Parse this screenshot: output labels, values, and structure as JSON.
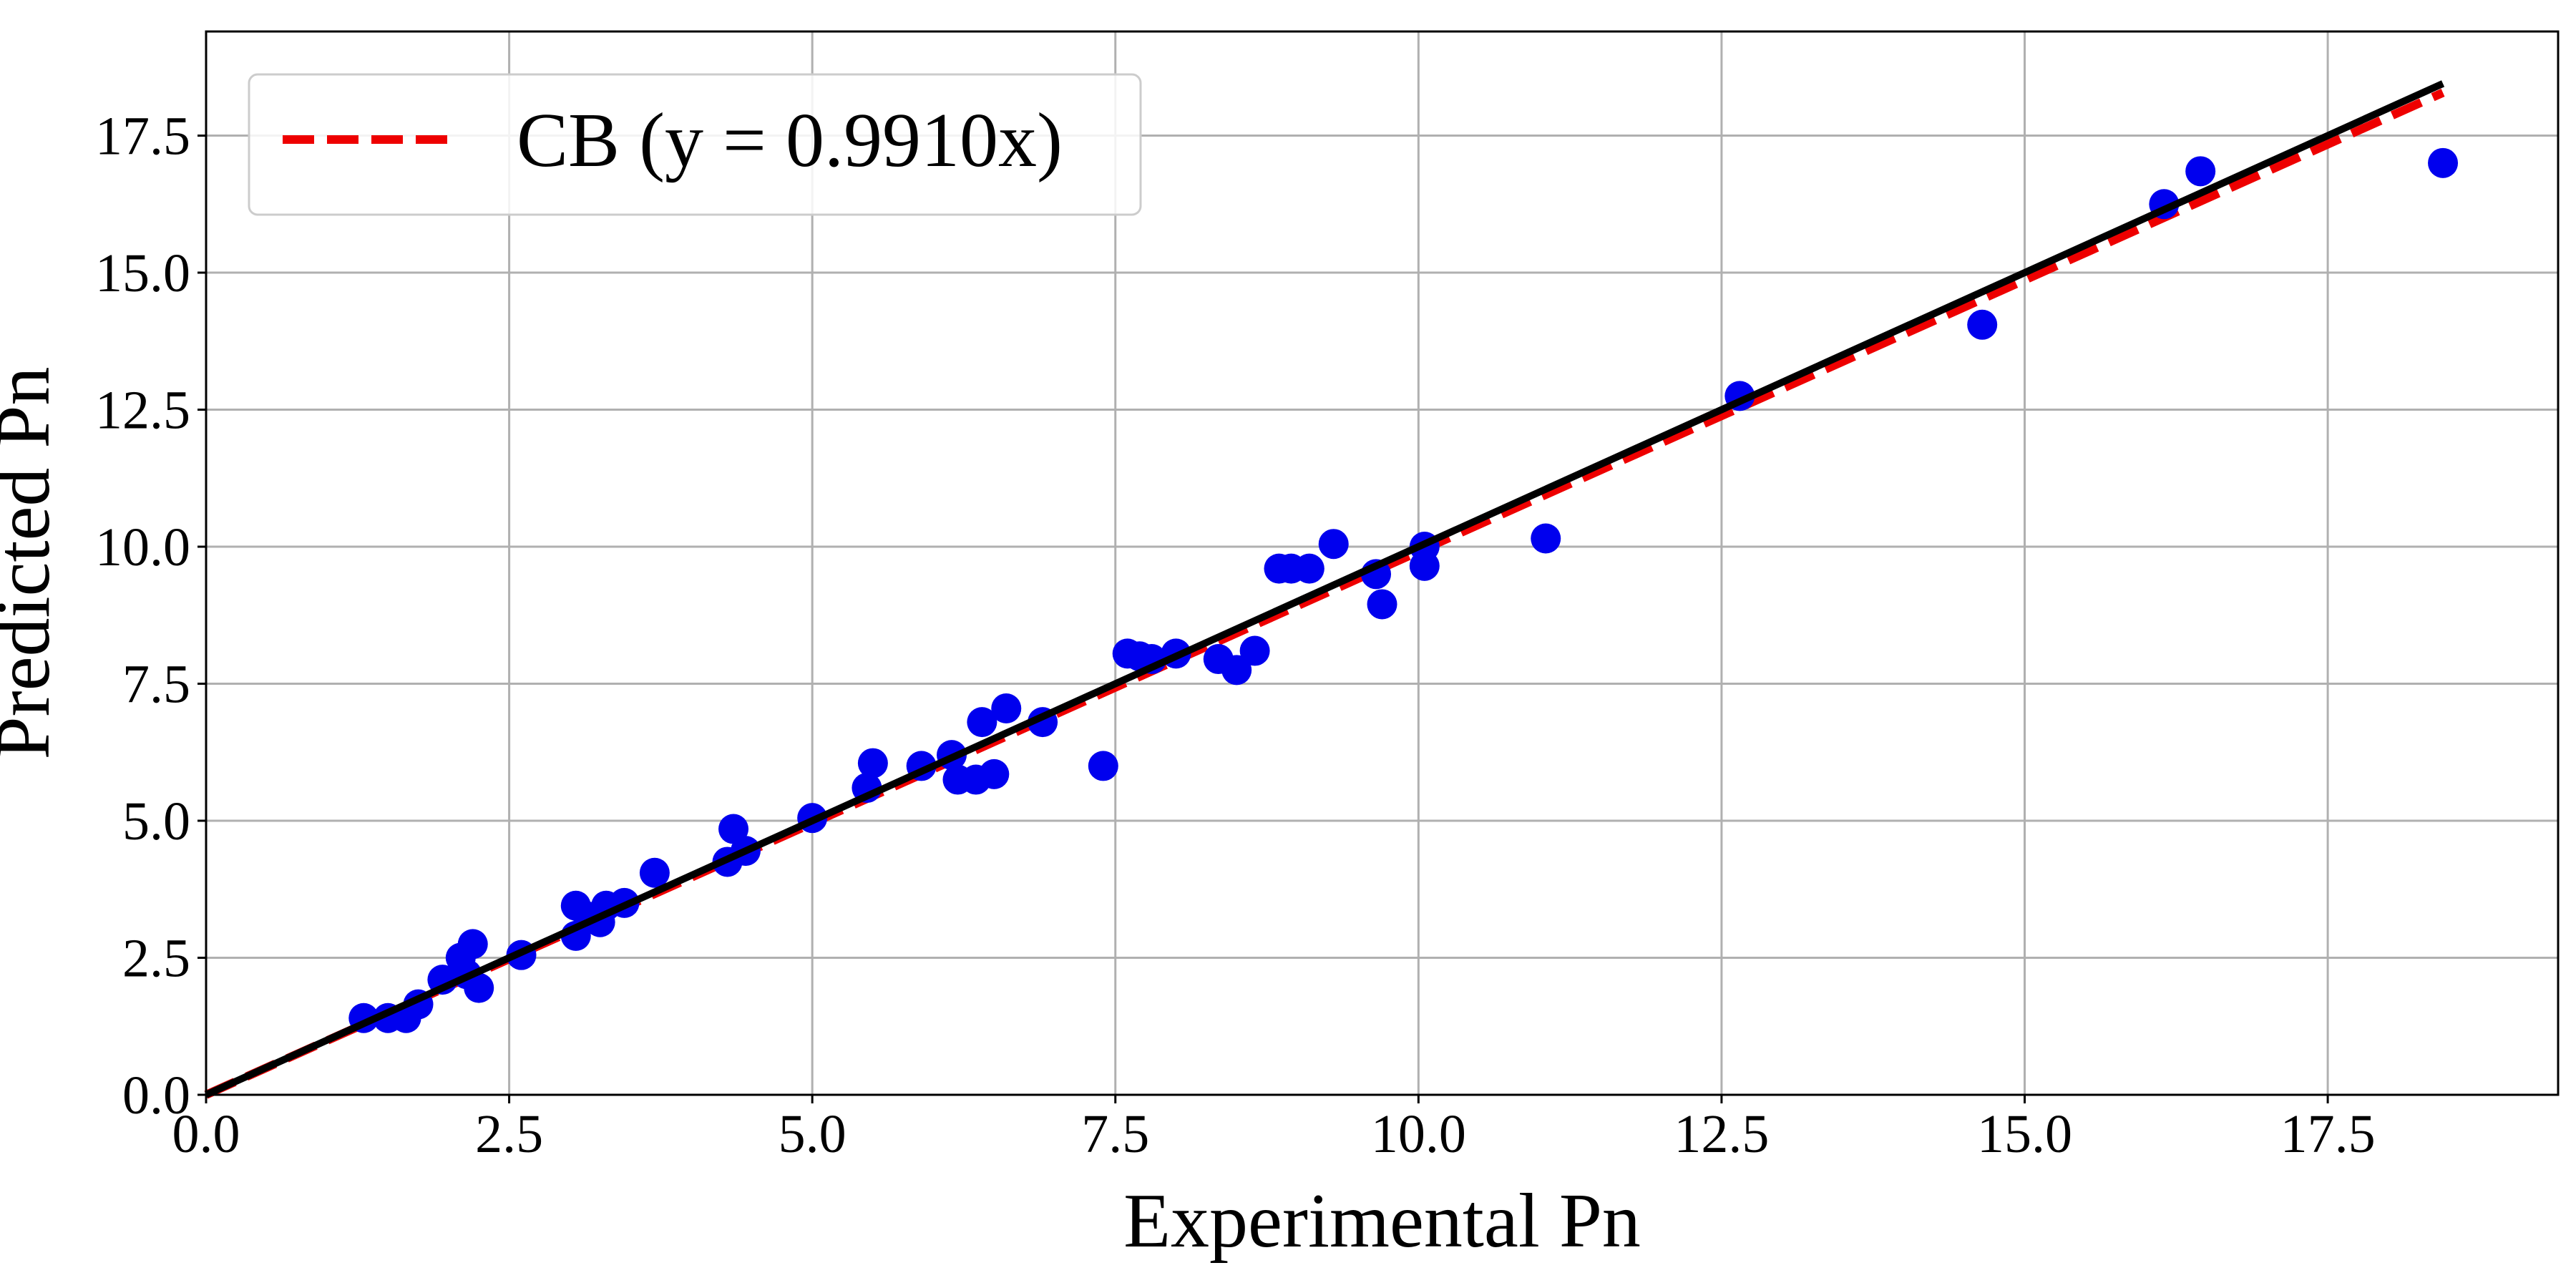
{
  "chart_data": {
    "type": "scatter",
    "xlabel": "Experimental Pn",
    "ylabel": "Predicted Pn",
    "xlim": [
      0,
      19.4
    ],
    "ylim": [
      0,
      19.4
    ],
    "x_ticks": [
      0.0,
      2.5,
      5.0,
      7.5,
      10.0,
      12.5,
      15.0,
      17.5
    ],
    "x_tick_labels": [
      "0.0",
      "2.5",
      "5.0",
      "7.5",
      "10.0",
      "12.5",
      "15.0",
      "17.5"
    ],
    "y_ticks": [
      0.0,
      2.5,
      5.0,
      7.5,
      10.0,
      12.5,
      15.0,
      17.5
    ],
    "y_tick_labels": [
      "0.0",
      "2.5",
      "5.0",
      "7.5",
      "10.0",
      "12.5",
      "15.0",
      "17.5"
    ],
    "grid": true,
    "legend": {
      "placement": "top-left",
      "entries": [
        "CB (y = 0.9910x)"
      ]
    },
    "colors": {
      "points": "#0000ee",
      "fit_line": "#ee0000",
      "identity_line": "#000000"
    },
    "fit_line": {
      "slope": 0.991,
      "x_range": [
        0,
        18.45
      ],
      "style": "dashed"
    },
    "identity_line": {
      "slope": 1.0,
      "x_range": [
        0,
        18.45
      ],
      "style": "solid"
    },
    "points": [
      {
        "x": 1.3,
        "y": 1.4
      },
      {
        "x": 1.5,
        "y": 1.4
      },
      {
        "x": 1.65,
        "y": 1.4
      },
      {
        "x": 1.75,
        "y": 1.65
      },
      {
        "x": 1.95,
        "y": 2.1
      },
      {
        "x": 2.1,
        "y": 2.5
      },
      {
        "x": 2.15,
        "y": 2.2
      },
      {
        "x": 2.2,
        "y": 2.75
      },
      {
        "x": 2.25,
        "y": 1.95
      },
      {
        "x": 2.6,
        "y": 2.55
      },
      {
        "x": 3.05,
        "y": 3.45
      },
      {
        "x": 3.05,
        "y": 2.9
      },
      {
        "x": 3.15,
        "y": 3.25
      },
      {
        "x": 3.25,
        "y": 3.15
      },
      {
        "x": 3.3,
        "y": 3.45
      },
      {
        "x": 3.45,
        "y": 3.5
      },
      {
        "x": 3.7,
        "y": 4.05
      },
      {
        "x": 4.3,
        "y": 4.25
      },
      {
        "x": 4.35,
        "y": 4.85
      },
      {
        "x": 4.45,
        "y": 4.45
      },
      {
        "x": 5.0,
        "y": 5.05
      },
      {
        "x": 5.45,
        "y": 5.6
      },
      {
        "x": 5.5,
        "y": 6.05
      },
      {
        "x": 5.9,
        "y": 6.0
      },
      {
        "x": 6.15,
        "y": 6.2
      },
      {
        "x": 6.2,
        "y": 5.75
      },
      {
        "x": 6.35,
        "y": 5.75
      },
      {
        "x": 6.4,
        "y": 6.8
      },
      {
        "x": 6.5,
        "y": 5.85
      },
      {
        "x": 6.6,
        "y": 7.05
      },
      {
        "x": 6.9,
        "y": 6.8
      },
      {
        "x": 7.4,
        "y": 6.0
      },
      {
        "x": 7.6,
        "y": 8.05
      },
      {
        "x": 7.7,
        "y": 8.0
      },
      {
        "x": 7.8,
        "y": 7.95
      },
      {
        "x": 8.0,
        "y": 8.05
      },
      {
        "x": 8.35,
        "y": 7.95
      },
      {
        "x": 8.5,
        "y": 7.75
      },
      {
        "x": 8.65,
        "y": 8.1
      },
      {
        "x": 8.85,
        "y": 9.6
      },
      {
        "x": 8.95,
        "y": 9.6
      },
      {
        "x": 9.1,
        "y": 9.6
      },
      {
        "x": 9.3,
        "y": 10.05
      },
      {
        "x": 9.65,
        "y": 9.5
      },
      {
        "x": 9.7,
        "y": 8.95
      },
      {
        "x": 10.05,
        "y": 10.0
      },
      {
        "x": 10.05,
        "y": 9.65
      },
      {
        "x": 11.05,
        "y": 10.15
      },
      {
        "x": 12.65,
        "y": 12.75
      },
      {
        "x": 14.65,
        "y": 14.05
      },
      {
        "x": 16.15,
        "y": 16.25
      },
      {
        "x": 16.45,
        "y": 16.85
      },
      {
        "x": 18.45,
        "y": 17.0
      }
    ]
  }
}
